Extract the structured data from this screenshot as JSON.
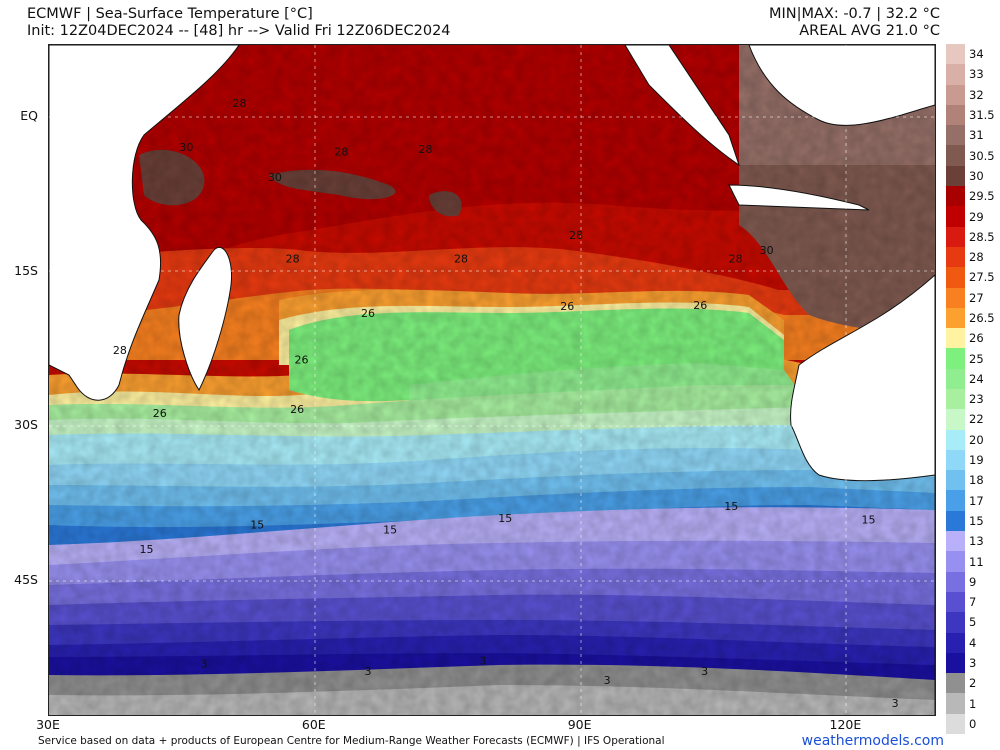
{
  "header": {
    "title": "ECMWF | Sea-Surface Temperature [°C]",
    "init": "Init: 12Z04DEC2024 -- [48] hr --> Valid Fri 12Z06DEC2024",
    "minmax": "MIN|MAX: -0.7 | 32.2 °C",
    "areal": "AREAL AVG 21.0 °C"
  },
  "map": {
    "lat_labels": [
      {
        "text": "EQ",
        "lat": 0
      },
      {
        "text": "15S",
        "lat": -15
      },
      {
        "text": "30S",
        "lat": -30
      },
      {
        "text": "45S",
        "lat": -45
      }
    ],
    "lon_labels": [
      {
        "text": "30E",
        "lon": 30
      },
      {
        "text": "60E",
        "lon": 60
      },
      {
        "text": "90E",
        "lon": 90
      },
      {
        "text": "120E",
        "lon": 120
      }
    ],
    "extent": {
      "lon_min": 30,
      "lon_max": 130,
      "lat_max": 7,
      "lat_min": -58
    },
    "contour_labels": [
      {
        "text": "28",
        "lon": 51.5,
        "lat": 1
      },
      {
        "text": "30",
        "lon": 45.5,
        "lat": -3.3
      },
      {
        "text": "28",
        "lon": 63,
        "lat": -3.7
      },
      {
        "text": "28",
        "lon": 72.5,
        "lat": -3.5
      },
      {
        "text": "30",
        "lon": 55.5,
        "lat": -6.2
      },
      {
        "text": "28",
        "lon": 89.5,
        "lat": -11.8
      },
      {
        "text": "28",
        "lon": 57.5,
        "lat": -14.1
      },
      {
        "text": "28",
        "lon": 76.5,
        "lat": -14.1
      },
      {
        "text": "28",
        "lon": 107.5,
        "lat": -14.1
      },
      {
        "text": "30",
        "lon": 111,
        "lat": -13.3
      },
      {
        "text": "26",
        "lon": 66,
        "lat": -19.4
      },
      {
        "text": "26",
        "lon": 88.5,
        "lat": -18.7
      },
      {
        "text": "26",
        "lon": 103.5,
        "lat": -18.6
      },
      {
        "text": "28",
        "lon": 38,
        "lat": -23
      },
      {
        "text": "26",
        "lon": 58.5,
        "lat": -23.9
      },
      {
        "text": "26",
        "lon": 42.5,
        "lat": -29.1
      },
      {
        "text": "26",
        "lon": 58,
        "lat": -28.7
      },
      {
        "text": "15",
        "lon": 107,
        "lat": -38.1
      },
      {
        "text": "15",
        "lon": 81.5,
        "lat": -39.3
      },
      {
        "text": "15",
        "lon": 122.5,
        "lat": -39.4
      },
      {
        "text": "15",
        "lon": 53.5,
        "lat": -39.9
      },
      {
        "text": "15",
        "lon": 68.5,
        "lat": -40.4
      },
      {
        "text": "15",
        "lon": 41,
        "lat": -42.3
      },
      {
        "text": "3",
        "lon": 47.5,
        "lat": -53.4
      },
      {
        "text": "3",
        "lon": 79,
        "lat": -53.1
      },
      {
        "text": "3",
        "lon": 66,
        "lat": -54.1
      },
      {
        "text": "3",
        "lon": 104,
        "lat": -54.1
      },
      {
        "text": "3",
        "lon": 93,
        "lat": -55
      },
      {
        "text": "3",
        "lon": 125.5,
        "lat": -57.2
      }
    ]
  },
  "legend": {
    "labels": [
      "34",
      "33",
      "32",
      "31.5",
      "31",
      "30.5",
      "30",
      "29.5",
      "29",
      "28.5",
      "28",
      "27.5",
      "27",
      "26.5",
      "26",
      "25",
      "24",
      "23",
      "22",
      "20",
      "19",
      "18",
      "17",
      "15",
      "13",
      "11",
      "9",
      "7",
      "5",
      "4",
      "3",
      "2",
      "1",
      "0"
    ],
    "colors": [
      "#e6c8c0",
      "#d9b0a8",
      "#c89a90",
      "#b08278",
      "#967068",
      "#805a50",
      "#6a4038",
      "#a80000",
      "#c00000",
      "#d81a10",
      "#e83a10",
      "#f05a10",
      "#f88020",
      "#fca030",
      "#fff2a0",
      "#7df07d",
      "#90ee90",
      "#a8f0a0",
      "#c8f8c8",
      "#a8ecf8",
      "#90d8f8",
      "#70c0f0",
      "#4aa0e8",
      "#2a78d8",
      "#b8b0f8",
      "#9890f0",
      "#7870e0",
      "#5850d0",
      "#3c36c0",
      "#2820b0",
      "#1a10a0",
      "#909090",
      "#b8b8b8",
      "#dcdcdc"
    ]
  },
  "footer": {
    "credit": "Service based on data + products of European Centre for Medium-Range Weather Forecasts (ECMWF) | IFS Operational",
    "brand": "weathermodels.com"
  }
}
